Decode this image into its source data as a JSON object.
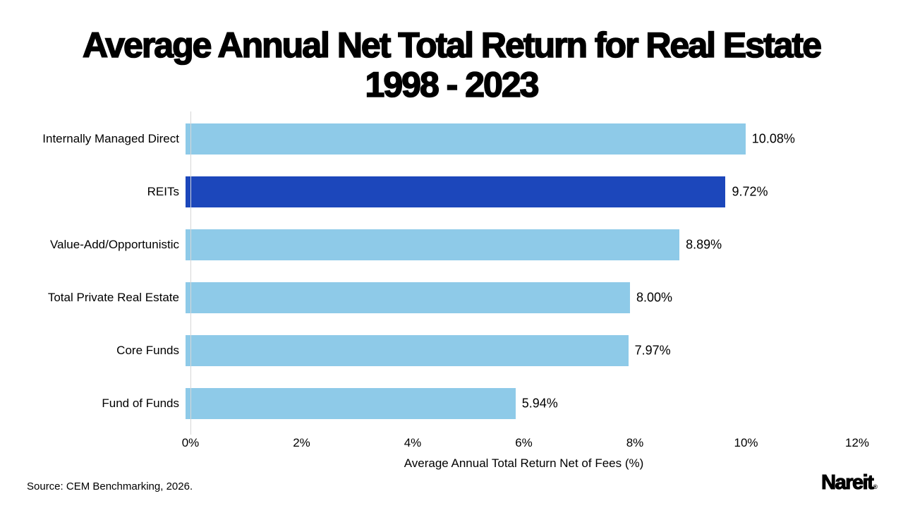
{
  "title": {
    "line1": "Average Annual Net Total Return for Real Estate",
    "line2": "1998 - 2023"
  },
  "chart_data": {
    "type": "bar",
    "orientation": "horizontal",
    "categories": [
      "Internally Managed Direct",
      "REITs",
      "Value-Add/Opportunistic",
      "Total Private Real Estate",
      "Core Funds",
      "Fund of Funds"
    ],
    "values": [
      10.08,
      9.72,
      8.89,
      8.0,
      7.97,
      5.94
    ],
    "value_labels": [
      "10.08%",
      "9.72%",
      "8.89%",
      "8.00%",
      "7.97%",
      "5.94%"
    ],
    "highlight_index": 1,
    "bar_color": "#8ECAE8",
    "highlight_color": "#1C47BB",
    "xlabel": "Average Annual Total Return Net of Fees (%)",
    "xticks": [
      "0%",
      "2%",
      "4%",
      "6%",
      "8%",
      "10%",
      "12%"
    ],
    "xlim": [
      0,
      12
    ],
    "grid": false,
    "legend": false
  },
  "footer": {
    "source": "Source: CEM Benchmarking, 2026.",
    "logo_text": "Nareit",
    "logo_mark": "®"
  }
}
